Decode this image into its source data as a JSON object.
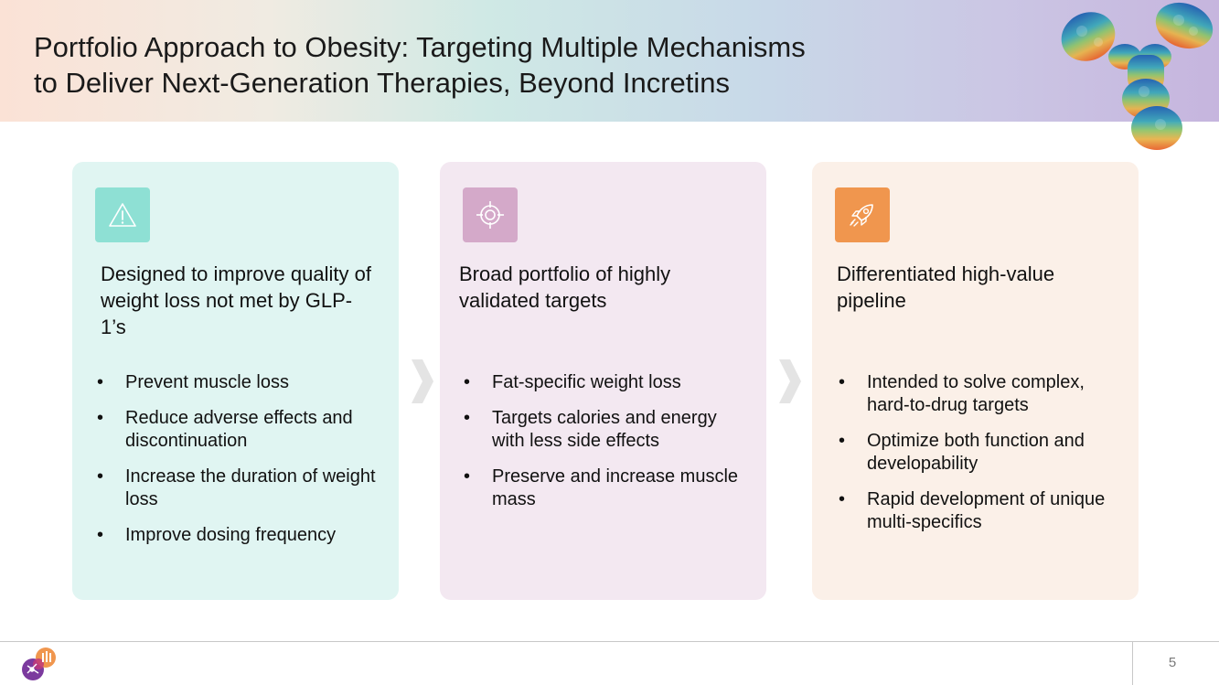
{
  "slide": {
    "title_line1": "Portfolio Approach to Obesity: Targeting Multiple Mechanisms",
    "title_line2": "to Deliver Next-Generation Therapies, Beyond Incretins",
    "page_number": "5"
  },
  "cards": [
    {
      "icon": "warning-icon",
      "heading": "Designed to improve quality of weight loss not met by GLP-1’s",
      "bullets": [
        "Prevent muscle loss",
        "Reduce adverse effects and discontinuation",
        "Increase the duration of weight loss",
        "Improve dosing frequency"
      ],
      "color": "#8ee0d4"
    },
    {
      "icon": "target-icon",
      "heading": "Broad portfolio of highly validated targets",
      "bullets": [
        "Fat-specific weight loss",
        "Targets calories and energy with less side effects",
        "Preserve and increase muscle mass"
      ],
      "color": "#d4a9c9"
    },
    {
      "icon": "rocket-icon",
      "heading": "Differentiated high-value pipeline",
      "bullets": [
        "Intended to solve complex, hard-to-drug targets",
        "Optimize both function and developability",
        "Rapid development of unique multi-specifics"
      ],
      "color": "#f0964e"
    }
  ]
}
